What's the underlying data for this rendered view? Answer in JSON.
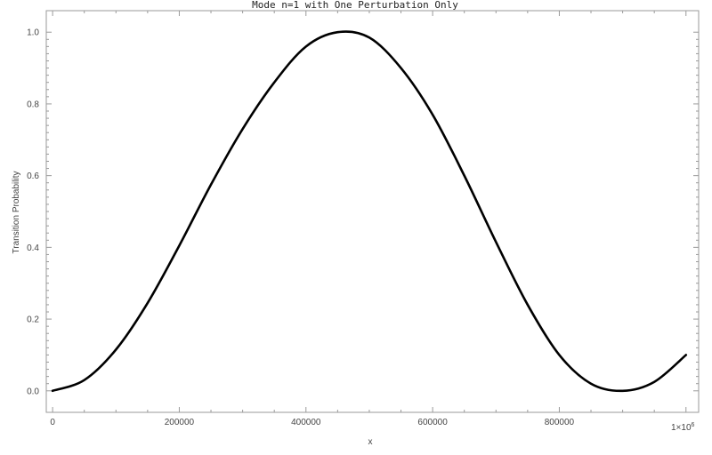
{
  "chart_data": {
    "type": "line",
    "title": "Mode n=1 with One Perturbation Only",
    "xlabel": "x",
    "ylabel": "Transition Probability",
    "x_multiplier_label": "1×10",
    "x_multiplier_exp": "6",
    "xlim": [
      -10000,
      1020000
    ],
    "ylim": [
      -0.06,
      1.06
    ],
    "x_ticks": [
      {
        "value": 0,
        "label": "0"
      },
      {
        "value": 200000,
        "label": "200000"
      },
      {
        "value": 400000,
        "label": "400000"
      },
      {
        "value": 600000,
        "label": "600000"
      },
      {
        "value": 800000,
        "label": "800000"
      }
    ],
    "y_ticks": [
      {
        "value": 0.0,
        "label": "0.0"
      },
      {
        "value": 0.2,
        "label": "0.2"
      },
      {
        "value": 0.4,
        "label": "0.4"
      },
      {
        "value": 0.6,
        "label": "0.6"
      },
      {
        "value": 0.8,
        "label": "0.8"
      },
      {
        "value": 1.0,
        "label": "1.0"
      }
    ],
    "series": [
      {
        "color": "#000000",
        "x": [
          0,
          50000,
          100000,
          150000,
          200000,
          250000,
          300000,
          350000,
          400000,
          450000,
          500000,
          550000,
          600000,
          650000,
          700000,
          750000,
          800000,
          850000,
          900000,
          950000,
          1000000
        ],
        "y": [
          0.0,
          0.03,
          0.115,
          0.245,
          0.405,
          0.575,
          0.73,
          0.86,
          0.96,
          1.0,
          0.985,
          0.9,
          0.77,
          0.6,
          0.415,
          0.24,
          0.1,
          0.02,
          0.0,
          0.025,
          0.1
        ]
      }
    ]
  }
}
